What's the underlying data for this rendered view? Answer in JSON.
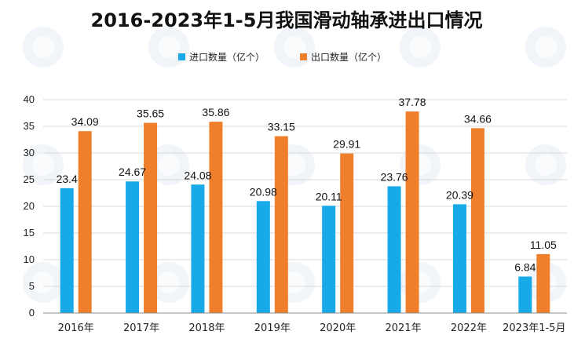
{
  "chart_data": {
    "type": "bar",
    "title": "2016-2023年1-5月我国滑动轴承进出口情况",
    "categories": [
      "2016年",
      "2017年",
      "2018年",
      "2019年",
      "2020年",
      "2021年",
      "2022年",
      "2023年1-5月"
    ],
    "series": [
      {
        "name": "进口数量（亿个）",
        "color": "#17a9e8",
        "values": [
          23.4,
          24.67,
          24.08,
          20.98,
          20.11,
          23.76,
          20.39,
          6.84
        ]
      },
      {
        "name": "出口数量（亿个）",
        "color": "#f07f2c",
        "values": [
          34.09,
          35.65,
          35.86,
          33.15,
          29.91,
          37.78,
          34.66,
          11.05
        ]
      }
    ],
    "ylim": [
      0,
      40
    ],
    "yticks": [
      0,
      5,
      10,
      15,
      20,
      25,
      30,
      35,
      40
    ],
    "xlabel": "",
    "ylabel": "",
    "grid": true,
    "legend": "top-center"
  }
}
